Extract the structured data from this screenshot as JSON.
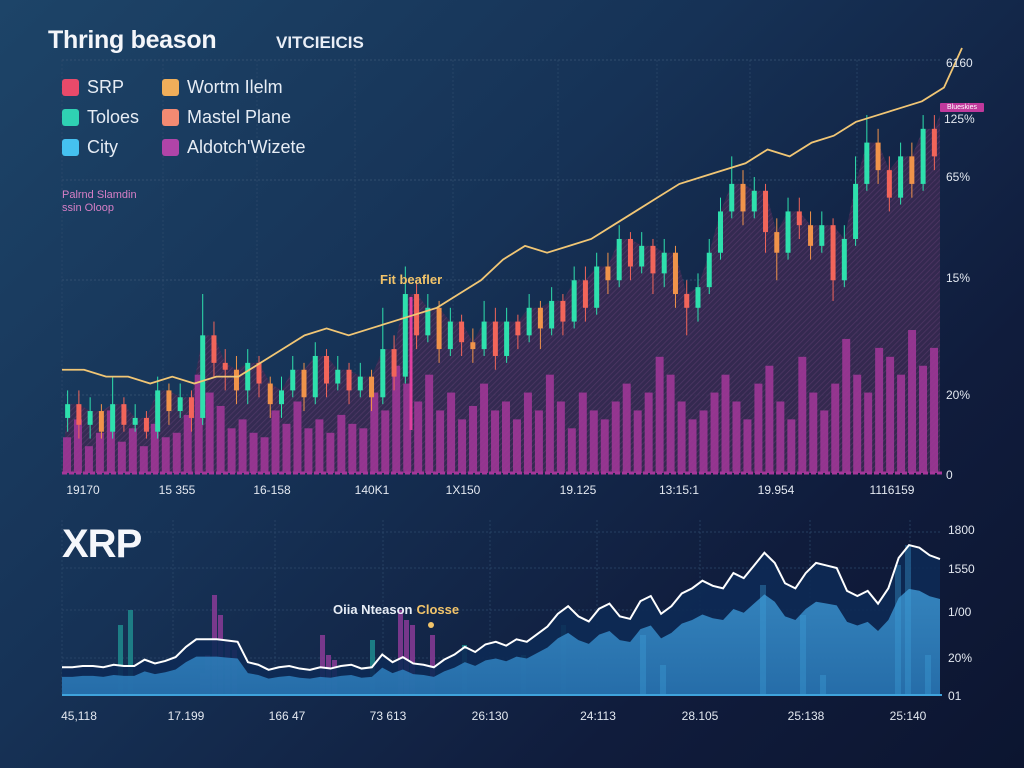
{
  "header": {
    "title": "Thring beason",
    "subtitle": "VITCIEICIS"
  },
  "legend": [
    {
      "label": "SRP",
      "color": "#e84a6a"
    },
    {
      "label": "Toloes",
      "color": "#2fd1b3"
    },
    {
      "label": "City",
      "color": "#45c1f0"
    },
    {
      "label": "Wortm Ilelm",
      "color": "#f0ae5a"
    },
    {
      "label": "Mastel Plane",
      "color": "#f38a72"
    },
    {
      "label": "Aldotch'Wizete",
      "color": "#b044a8"
    }
  ],
  "note": {
    "line1": "Palrnd Slamdin",
    "line2": "ssin Oloop"
  },
  "tag_label": "Blueskies",
  "chart_data": [
    {
      "type": "candlestick",
      "title": "Thring beason",
      "annotation": "Fit beafler",
      "y_tick_labels": [
        "6160",
        "125%",
        "65%",
        "15%",
        "20%",
        "0"
      ],
      "x_tick_labels": [
        "19170",
        "15 355",
        "16-158",
        "140K1",
        "1X150",
        "19.125",
        "13:15:1",
        "19.954",
        "1116159"
      ],
      "colors": {
        "up": "#2ee0ad",
        "down": "#f2655a",
        "alt": "#f0934a",
        "trend": "#f1c675",
        "volume": "#a5379a"
      },
      "trend_line": [
        55,
        55,
        54,
        54,
        53,
        54,
        53,
        54,
        54,
        56,
        58,
        60,
        61,
        60,
        61,
        62,
        63,
        64,
        66,
        68,
        71,
        73,
        72,
        73,
        74,
        76,
        78,
        80,
        82,
        83,
        84,
        85,
        87,
        86,
        88,
        89,
        91,
        92,
        93,
        94,
        96
      ],
      "candles": [
        {
          "o": 48,
          "c": 50,
          "h": 52,
          "l": 46
        },
        {
          "o": 50,
          "c": 47,
          "h": 52,
          "l": 45
        },
        {
          "o": 47,
          "c": 49,
          "h": 51,
          "l": 45
        },
        {
          "o": 49,
          "c": 46,
          "h": 50,
          "l": 45
        },
        {
          "o": 46,
          "c": 50,
          "h": 54,
          "l": 45
        },
        {
          "o": 50,
          "c": 47,
          "h": 51,
          "l": 46
        },
        {
          "o": 47,
          "c": 48,
          "h": 50,
          "l": 46
        },
        {
          "o": 48,
          "c": 46,
          "h": 49,
          "l": 45
        },
        {
          "o": 46,
          "c": 52,
          "h": 54,
          "l": 45
        },
        {
          "o": 52,
          "c": 49,
          "h": 53,
          "l": 47
        },
        {
          "o": 49,
          "c": 51,
          "h": 53,
          "l": 48
        },
        {
          "o": 51,
          "c": 48,
          "h": 52,
          "l": 46
        },
        {
          "o": 48,
          "c": 60,
          "h": 66,
          "l": 47
        },
        {
          "o": 60,
          "c": 56,
          "h": 62,
          "l": 54
        },
        {
          "o": 56,
          "c": 55,
          "h": 58,
          "l": 52
        },
        {
          "o": 55,
          "c": 52,
          "h": 57,
          "l": 50
        },
        {
          "o": 52,
          "c": 56,
          "h": 58,
          "l": 50
        },
        {
          "o": 56,
          "c": 53,
          "h": 57,
          "l": 51
        },
        {
          "o": 53,
          "c": 50,
          "h": 54,
          "l": 48
        },
        {
          "o": 50,
          "c": 52,
          "h": 54,
          "l": 48
        },
        {
          "o": 52,
          "c": 55,
          "h": 57,
          "l": 51
        },
        {
          "o": 55,
          "c": 51,
          "h": 56,
          "l": 49
        },
        {
          "o": 51,
          "c": 57,
          "h": 59,
          "l": 50
        },
        {
          "o": 57,
          "c": 53,
          "h": 58,
          "l": 51
        },
        {
          "o": 53,
          "c": 55,
          "h": 57,
          "l": 52
        },
        {
          "o": 55,
          "c": 52,
          "h": 56,
          "l": 50
        },
        {
          "o": 52,
          "c": 54,
          "h": 56,
          "l": 51
        },
        {
          "o": 54,
          "c": 51,
          "h": 55,
          "l": 49
        },
        {
          "o": 51,
          "c": 58,
          "h": 64,
          "l": 50
        },
        {
          "o": 58,
          "c": 54,
          "h": 60,
          "l": 52
        },
        {
          "o": 54,
          "c": 66,
          "h": 70,
          "l": 53
        },
        {
          "o": 66,
          "c": 60,
          "h": 68,
          "l": 58
        },
        {
          "o": 60,
          "c": 64,
          "h": 66,
          "l": 59
        },
        {
          "o": 64,
          "c": 58,
          "h": 65,
          "l": 56
        },
        {
          "o": 58,
          "c": 62,
          "h": 64,
          "l": 57
        },
        {
          "o": 62,
          "c": 59,
          "h": 63,
          "l": 57
        },
        {
          "o": 59,
          "c": 58,
          "h": 61,
          "l": 56
        },
        {
          "o": 58,
          "c": 62,
          "h": 65,
          "l": 57
        },
        {
          "o": 62,
          "c": 57,
          "h": 64,
          "l": 55
        },
        {
          "o": 57,
          "c": 62,
          "h": 64,
          "l": 56
        },
        {
          "o": 62,
          "c": 60,
          "h": 63,
          "l": 58
        },
        {
          "o": 60,
          "c": 64,
          "h": 66,
          "l": 59
        },
        {
          "o": 64,
          "c": 61,
          "h": 65,
          "l": 58
        },
        {
          "o": 61,
          "c": 65,
          "h": 67,
          "l": 60
        },
        {
          "o": 65,
          "c": 62,
          "h": 66,
          "l": 60
        },
        {
          "o": 62,
          "c": 68,
          "h": 70,
          "l": 61
        },
        {
          "o": 68,
          "c": 64,
          "h": 70,
          "l": 62
        },
        {
          "o": 64,
          "c": 70,
          "h": 72,
          "l": 63
        },
        {
          "o": 70,
          "c": 68,
          "h": 72,
          "l": 66
        },
        {
          "o": 68,
          "c": 74,
          "h": 76,
          "l": 67
        },
        {
          "o": 74,
          "c": 70,
          "h": 75,
          "l": 68
        },
        {
          "o": 70,
          "c": 73,
          "h": 75,
          "l": 69
        },
        {
          "o": 73,
          "c": 69,
          "h": 74,
          "l": 66
        },
        {
          "o": 69,
          "c": 72,
          "h": 74,
          "l": 67
        },
        {
          "o": 72,
          "c": 66,
          "h": 73,
          "l": 64
        },
        {
          "o": 66,
          "c": 64,
          "h": 68,
          "l": 60
        },
        {
          "o": 64,
          "c": 67,
          "h": 69,
          "l": 62
        },
        {
          "o": 67,
          "c": 72,
          "h": 74,
          "l": 66
        },
        {
          "o": 72,
          "c": 78,
          "h": 80,
          "l": 71
        },
        {
          "o": 78,
          "c": 82,
          "h": 86,
          "l": 77
        },
        {
          "o": 82,
          "c": 78,
          "h": 84,
          "l": 76
        },
        {
          "o": 78,
          "c": 81,
          "h": 83,
          "l": 77
        },
        {
          "o": 81,
          "c": 75,
          "h": 82,
          "l": 72
        },
        {
          "o": 75,
          "c": 72,
          "h": 77,
          "l": 68
        },
        {
          "o": 72,
          "c": 78,
          "h": 80,
          "l": 71
        },
        {
          "o": 78,
          "c": 76,
          "h": 80,
          "l": 74
        },
        {
          "o": 76,
          "c": 73,
          "h": 78,
          "l": 71
        },
        {
          "o": 73,
          "c": 76,
          "h": 78,
          "l": 72
        },
        {
          "o": 76,
          "c": 68,
          "h": 77,
          "l": 65
        },
        {
          "o": 68,
          "c": 74,
          "h": 76,
          "l": 67
        },
        {
          "o": 74,
          "c": 82,
          "h": 86,
          "l": 73
        },
        {
          "o": 82,
          "c": 88,
          "h": 92,
          "l": 81
        },
        {
          "o": 88,
          "c": 84,
          "h": 90,
          "l": 82
        },
        {
          "o": 84,
          "c": 80,
          "h": 86,
          "l": 78
        },
        {
          "o": 80,
          "c": 86,
          "h": 88,
          "l": 79
        },
        {
          "o": 86,
          "c": 82,
          "h": 88,
          "l": 80
        },
        {
          "o": 82,
          "c": 90,
          "h": 92,
          "l": 81
        },
        {
          "o": 90,
          "c": 86,
          "h": 92,
          "l": 84
        }
      ],
      "volume": [
        8,
        12,
        6,
        9,
        14,
        7,
        10,
        6,
        11,
        8,
        9,
        13,
        22,
        18,
        15,
        10,
        12,
        9,
        8,
        14,
        11,
        16,
        10,
        12,
        9,
        13,
        11,
        10,
        18,
        14,
        24,
        20,
        16,
        22,
        14,
        18,
        12,
        15,
        20,
        14,
        16,
        12,
        18,
        14,
        22,
        16,
        10,
        18,
        14,
        12,
        16,
        20,
        14,
        18,
        26,
        22,
        16,
        12,
        14,
        18,
        22,
        16,
        12,
        20,
        24,
        16,
        12,
        26,
        18,
        14,
        20,
        30,
        22,
        18,
        28,
        26,
        22,
        32,
        24,
        28
      ]
    },
    {
      "type": "area",
      "title": "XRP",
      "annotation": "Oiia Nteason Closse",
      "y_tick_labels": [
        "1800",
        "1550",
        "1/00",
        "20%",
        "01"
      ],
      "x_tick_labels": [
        "45,118",
        "17.199",
        "166 47",
        "73 613",
        "26:130",
        "24:113",
        "28.105",
        "25:138",
        "25:140"
      ],
      "colors": {
        "line": "#ffffff",
        "area_dark": "#0d2a55",
        "area_light": "#2f86c4",
        "volume_purple": "#8a3b96",
        "volume_teal": "#1e8b8e"
      },
      "price_line": [
        10,
        10,
        11,
        11,
        10,
        12,
        11,
        11,
        16,
        13,
        15,
        18,
        26,
        32,
        32,
        32,
        31,
        30,
        14,
        12,
        8,
        10,
        11,
        9,
        8,
        10,
        9,
        11,
        12,
        9,
        10,
        20,
        14,
        18,
        13,
        12,
        10,
        16,
        20,
        26,
        22,
        28,
        30,
        27,
        32,
        30,
        36,
        42,
        52,
        58,
        50,
        46,
        56,
        60,
        50,
        48,
        62,
        66,
        52,
        58,
        68,
        72,
        78,
        74,
        72,
        84,
        80,
        90,
        100,
        92,
        76,
        72,
        84,
        92,
        90,
        88,
        70,
        66,
        70,
        60,
        72,
        96,
        106,
        104,
        98,
        95
      ]
    }
  ]
}
